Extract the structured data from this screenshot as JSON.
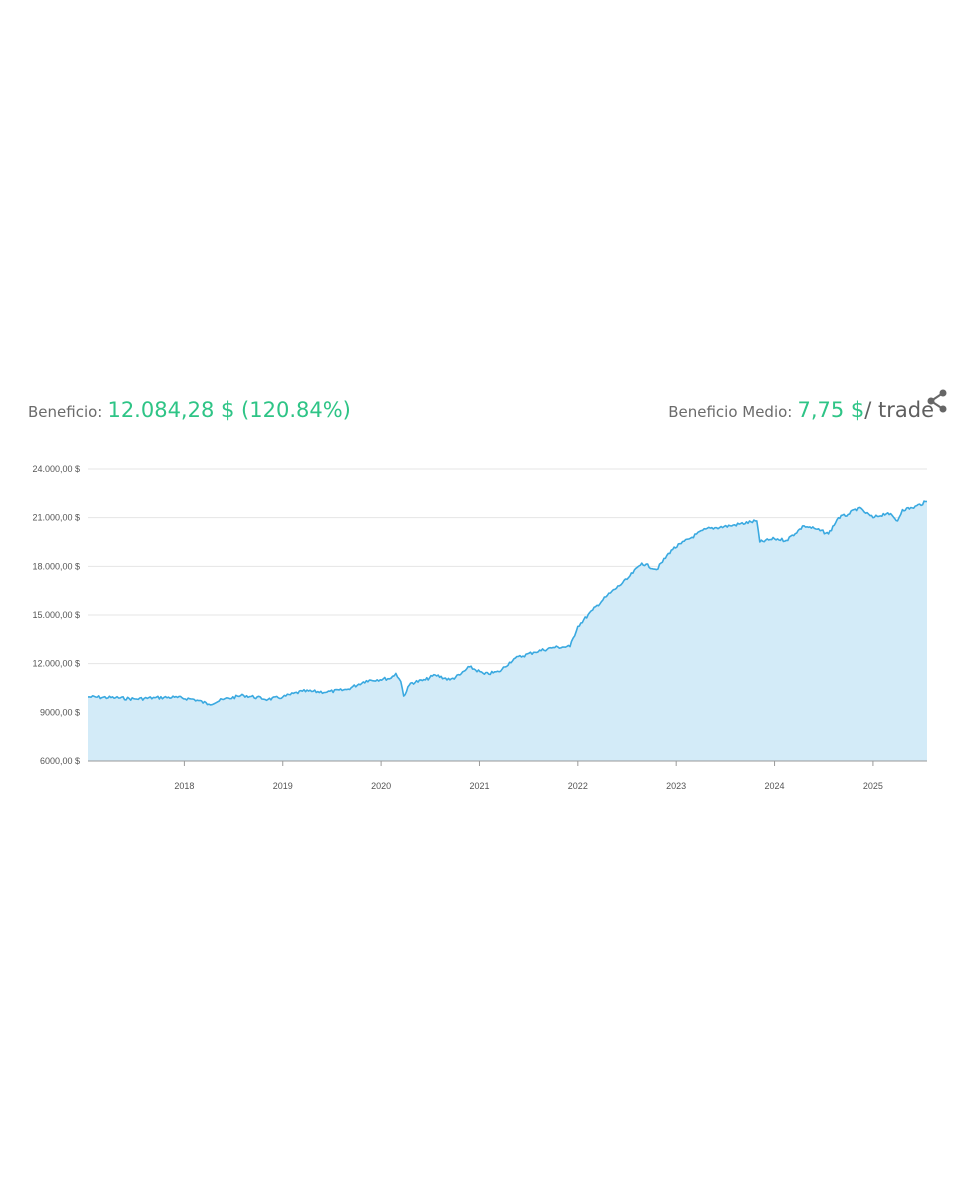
{
  "summary": {
    "profit_label": "Beneficio:",
    "profit_value": "12.084,28 $ (120.84%)",
    "avg_label": "Beneficio Medio:",
    "avg_value": "7,75 $",
    "avg_unit": "/ trade"
  },
  "icons": {
    "share": "share-icon"
  },
  "colors": {
    "accent": "#2ec486",
    "line": "#3aa9e0",
    "area": "#d3ebf8",
    "grid": "#e4e4e4"
  },
  "chart_data": {
    "type": "area",
    "title": "",
    "xlabel": "",
    "ylabel": "",
    "ylim": [
      6000,
      24000
    ],
    "xlim": [
      2017.02,
      2025.55
    ],
    "grid": true,
    "y_ticks": [
      {
        "value": 24000,
        "label": "24.000,00 $"
      },
      {
        "value": 21000,
        "label": "21.000,00 $"
      },
      {
        "value": 18000,
        "label": "18.000,00 $"
      },
      {
        "value": 15000,
        "label": "15.000,00 $"
      },
      {
        "value": 12000,
        "label": "12.000,00 $"
      },
      {
        "value": 9000,
        "label": "9000,00 $"
      },
      {
        "value": 6000,
        "label": "6000,00 $"
      }
    ],
    "x_ticks": [
      {
        "value": 2018,
        "label": "2018"
      },
      {
        "value": 2019,
        "label": "2019"
      },
      {
        "value": 2020,
        "label": "2020"
      },
      {
        "value": 2021,
        "label": "2021"
      },
      {
        "value": 2022,
        "label": "2022"
      },
      {
        "value": 2023,
        "label": "2023"
      },
      {
        "value": 2024,
        "label": "2024"
      },
      {
        "value": 2025,
        "label": "2025"
      }
    ],
    "series": [
      {
        "x": [
          2017.02,
          2017.3,
          2017.5,
          2017.7,
          2017.9,
          2018.1,
          2018.25,
          2018.4,
          2018.6,
          2018.85,
          2019.0,
          2019.2,
          2019.45,
          2019.65,
          2019.85,
          2020.1,
          2020.15,
          2020.2,
          2020.23,
          2020.3,
          2020.45,
          2020.55,
          2020.7,
          2020.8,
          2020.9,
          2021.05,
          2021.2,
          2021.35,
          2021.55,
          2021.75,
          2021.92,
          2022.0,
          2022.15,
          2022.3,
          2022.5,
          2022.65,
          2022.8,
          2022.95,
          2023.05,
          2023.3,
          2023.55,
          2023.82,
          2023.85,
          2024.0,
          2024.12,
          2024.3,
          2024.42,
          2024.55,
          2024.65,
          2024.75,
          2024.85,
          2025.0,
          2025.15,
          2025.25,
          2025.3,
          2025.4,
          2025.55
        ],
        "y": [
          9950,
          9900,
          9820,
          9900,
          9930,
          9800,
          9500,
          9800,
          10050,
          9800,
          9950,
          10300,
          10250,
          10400,
          10950,
          11100,
          11400,
          10900,
          10000,
          10800,
          11000,
          11300,
          11000,
          11300,
          11800,
          11350,
          11500,
          12300,
          12700,
          13000,
          13050,
          14300,
          15300,
          16200,
          17200,
          18200,
          17800,
          19000,
          19400,
          20300,
          20500,
          20800,
          19500,
          19700,
          19600,
          20500,
          20300,
          20000,
          21000,
          21200,
          21600,
          21000,
          21300,
          20800,
          21500,
          21600,
          22000
        ]
      }
    ]
  }
}
